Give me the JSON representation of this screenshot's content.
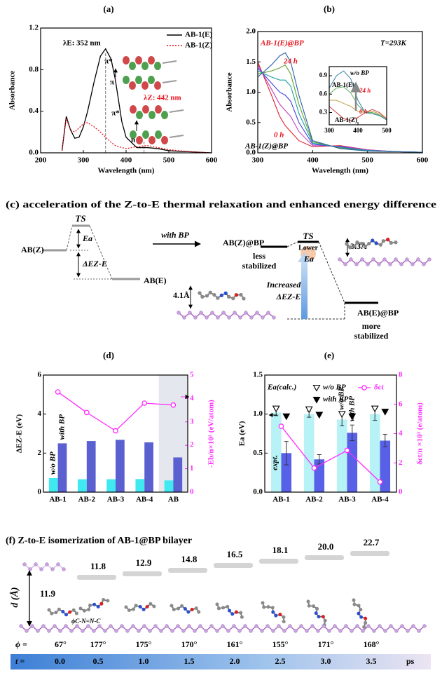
{
  "chart_data": [
    {
      "type": "line",
      "label": "(a)",
      "xlabel": "Wavelength (nm)",
      "ylabel": "Absorbance",
      "x": [
        250,
        260,
        270,
        280,
        290,
        300,
        310,
        325,
        340,
        352,
        365,
        375,
        390,
        400,
        425,
        450,
        475,
        500,
        550,
        600
      ],
      "series": [
        {
          "name": "AB-1(E)",
          "color": "#000000",
          "values": [
            0.02,
            0.35,
            0.22,
            0.14,
            0.15,
            0.25,
            0.4,
            0.68,
            0.93,
            1.0,
            0.9,
            0.7,
            0.3,
            0.15,
            0.05,
            0.05,
            0.04,
            0.02,
            0.01,
            0.0
          ]
        },
        {
          "name": "AB-1(Z)",
          "color": "#e8141e",
          "dash": true,
          "values": [
            0.02,
            0.33,
            0.22,
            0.2,
            0.24,
            0.28,
            0.29,
            0.25,
            0.2,
            0.15,
            0.1,
            0.07,
            0.05,
            0.04,
            0.06,
            0.07,
            0.05,
            0.03,
            0.01,
            0.0
          ]
        }
      ],
      "xlim": [
        200,
        600
      ],
      "xticks": [
        200,
        300,
        400,
        500,
        600
      ],
      "ylim": [
        0,
        1.2
      ],
      "yticks": [
        {
          "value": 0,
          "label": "0.0"
        },
        0.4,
        0.8,
        1.2
      ],
      "reference_lines": [
        352,
        442
      ],
      "legend": "upper right",
      "annotations": [
        "λE: 352 nm",
        "π*",
        "π",
        "λZ: 442 nm",
        "π*",
        "n"
      ]
    },
    {
      "type": "line",
      "label": "(b)",
      "xlabel": "Wavelength (nm)",
      "ylabel": "Absorbance",
      "x": [
        300,
        325,
        340,
        350,
        360,
        375,
        400,
        450,
        500,
        550,
        600
      ],
      "series": [
        {
          "color": "#e0202a",
          "values": [
            1.5,
            0.95,
            0.6,
            0.45,
            0.35,
            0.2,
            0.1,
            0.12,
            0.05,
            0.02,
            0.01
          ]
        },
        {
          "color": "#c040c0",
          "values": [
            1.45,
            1.05,
            0.8,
            0.7,
            0.6,
            0.35,
            0.12,
            0.11,
            0.05,
            0.02,
            0.01
          ]
        },
        {
          "color": "#4040e0",
          "values": [
            1.4,
            1.15,
            1.0,
            0.95,
            0.85,
            0.5,
            0.14,
            0.1,
            0.04,
            0.02,
            0.01
          ]
        },
        {
          "color": "#20a0a0",
          "values": [
            1.35,
            1.25,
            1.2,
            1.2,
            1.1,
            0.65,
            0.16,
            0.09,
            0.04,
            0.02,
            0.01
          ]
        },
        {
          "color": "#60a030",
          "values": [
            1.3,
            1.35,
            1.4,
            1.45,
            1.3,
            0.8,
            0.18,
            0.08,
            0.03,
            0.02,
            0.01
          ]
        },
        {
          "color": "#2a5fa8",
          "values": [
            1.25,
            1.45,
            1.6,
            1.65,
            1.5,
            0.95,
            0.2,
            0.07,
            0.03,
            0.02,
            0.01
          ]
        }
      ],
      "xlim": [
        300,
        600
      ],
      "xticks": [
        300,
        400,
        500,
        600
      ],
      "ylim": [
        0,
        2.0
      ],
      "yticks": [
        {
          "value": 0,
          "label": "0.0"
        },
        0.5,
        {
          "value": 1,
          "label": "1.0"
        },
        1.5,
        {
          "value": 2,
          "label": "2.0"
        }
      ],
      "annotations": [
        "AB-1(E)@BP",
        "T=293K",
        "24 h",
        "0 h",
        "AB-1(Z)@BP"
      ],
      "inset": {
        "type": "line",
        "x": [
          300,
          325,
          350,
          375,
          400,
          425,
          450,
          475,
          500
        ],
        "series": [
          {
            "color": "#d04040",
            "values": [
              0.4,
              0.3,
              0.2,
              0.17,
              0.22,
              0.3,
              0.35,
              0.3,
              0.2
            ]
          },
          {
            "color": "#c0a040",
            "values": [
              0.5,
              0.5,
              0.45,
              0.4,
              0.32,
              0.3,
              0.32,
              0.28,
              0.19
            ]
          },
          {
            "color": "#60b060",
            "values": [
              0.6,
              0.7,
              0.72,
              0.62,
              0.42,
              0.3,
              0.3,
              0.26,
              0.18
            ]
          },
          {
            "color": "#3080a0",
            "values": [
              0.7,
              0.9,
              0.98,
              0.85,
              0.5,
              0.3,
              0.28,
              0.25,
              0.18
            ]
          }
        ],
        "xlim": [
          300,
          500
        ],
        "xticks": [
          300,
          400,
          500
        ],
        "ylim": [
          0.1,
          1.05
        ],
        "yticks": [
          0.3,
          0.6,
          0.9
        ],
        "annotations": [
          "w/o BP",
          "AB-1(E)",
          "24 h",
          "0 h",
          "AB-1(Z)"
        ]
      }
    },
    {
      "type": "bar",
      "label": "(d)",
      "ylabel": "ΔEZ-E (eV)",
      "y2label": "-Eb/n×10² (eV/atom)",
      "categories": [
        "AB-1",
        "AB-2",
        "AB-3",
        "AB-4",
        "AB"
      ],
      "series": [
        {
          "name": "w/o BP",
          "color": "#40e8f0",
          "values": [
            0.72,
            0.66,
            0.66,
            0.67,
            0.6
          ]
        },
        {
          "name": "with BP",
          "color": "#5b60d0",
          "values": [
            2.5,
            2.62,
            2.68,
            2.55,
            1.78
          ]
        },
        {
          "color": "#ff2bff",
          "axis": "y2",
          "kind": "line",
          "marker": "open-circle",
          "values": [
            4.28,
            3.4,
            2.62,
            3.8,
            3.72
          ]
        }
      ],
      "ylim": [
        0,
        6
      ],
      "yticks": [
        0,
        2,
        4,
        6
      ],
      "y2lim": [
        0,
        5
      ],
      "y2ticks": [
        0,
        1,
        2,
        3,
        4,
        5
      ],
      "y2color": "#ff2bff"
    },
    {
      "type": "bar",
      "label": "(e)",
      "ylabel": "Ea (eV)",
      "y2label": "δct/n ×10³ (e/atom)",
      "categories": [
        "AB-1",
        "AB-2",
        "AB-3",
        "AB-4"
      ],
      "series": [
        {
          "name": "w/o BP",
          "color": "#b6f2f6",
          "values": [
            1.02,
            1.0,
            0.93,
            1.0
          ],
          "errors": [
            0.04,
            0.04,
            0.08,
            0.08
          ]
        },
        {
          "name": "with BP",
          "color": "#5860e8",
          "values": [
            0.5,
            0.42,
            0.76,
            0.66
          ],
          "errors": [
            0.15,
            0.06,
            0.1,
            0.08
          ]
        },
        {
          "name": "w/o BP",
          "kind": "marker",
          "marker": "open-triangle",
          "color": "#000000",
          "values": [
            1.0,
            0.99,
            0.93,
            1.0
          ]
        },
        {
          "name": "with BP",
          "kind": "marker",
          "marker": "filled-triangle",
          "color": "#000000",
          "values": [
            0.9,
            0.92,
            0.9,
            0.96
          ]
        },
        {
          "name": "δct",
          "color": "#ff2bff",
          "axis": "y2",
          "kind": "line",
          "marker": "open-circle",
          "values": [
            4.5,
            1.65,
            2.85,
            0.7
          ]
        }
      ],
      "ylim": [
        0,
        1.5
      ],
      "yticks": [
        {
          "value": 0,
          "label": "0.0"
        },
        0.5,
        {
          "value": 1,
          "label": "1.0"
        },
        1.5
      ],
      "y2lim": [
        0,
        8
      ],
      "y2ticks": [
        0,
        2,
        4,
        6,
        8
      ],
      "y2color": "#ff2bff",
      "annotations": [
        "Ea(calc.)",
        "expt."
      ]
    }
  ],
  "diagram_c": {
    "title": "(c) acceleration of the Z-to-E thermal relaxation and enhanced energy difference",
    "left": {
      "ts": "TS",
      "z": "AB(Z)",
      "ea": "Ea",
      "de": "ΔEZ-E",
      "e": "AB(E)"
    },
    "arrow": "with BP",
    "right": {
      "ts": "TS",
      "lower": "Lower",
      "ea": "Ea",
      "z": "AB(Z)@BP",
      "z_note": [
        "less",
        "stabilized"
      ],
      "increased": "Increased",
      "de": "ΔEZ-E",
      "e": "AB(E)@BP",
      "e_note": [
        "more",
        "stabilized"
      ],
      "d_top": "3.3Å",
      "d_bottom": "4.1Å"
    }
  },
  "panel_f": {
    "title": "(f) Z-to-E isomerization of AB-1@BP bilayer",
    "axis_label": "d (Å)",
    "angle_label": "ϕC-N=N-C",
    "d_values": [
      "11.9",
      "11.8",
      "12.9",
      "14.8",
      "16.5",
      "18.1",
      "20.0",
      "22.7"
    ],
    "phi_prefix": "ϕ =",
    "phi": [
      "67°",
      "177°",
      "175°",
      "170°",
      "161°",
      "155°",
      "171°",
      "168°"
    ],
    "t_prefix": "t =",
    "t": [
      "0.0",
      "0.5",
      "1.0",
      "1.5",
      "2.0",
      "2.5",
      "3.0",
      "3.5"
    ],
    "t_unit": "ps"
  }
}
